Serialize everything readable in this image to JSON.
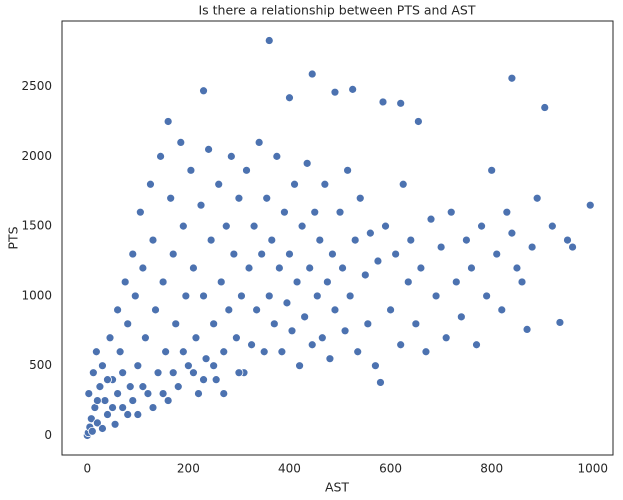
{
  "chart_data": {
    "type": "scatter",
    "title": "Is there a relationship between PTS and AST",
    "x_label": "AST",
    "y_label": "PTS",
    "color": "#4c72b0",
    "xlim": [
      -50,
      1040
    ],
    "ylim": [
      -140,
      2970
    ],
    "xticks": [
      0,
      200,
      400,
      600,
      800,
      1000
    ],
    "yticks": [
      0,
      500,
      1000,
      1500,
      2000,
      2500
    ],
    "x": [
      0,
      2,
      5,
      10,
      8,
      15,
      3,
      20,
      25,
      12,
      30,
      18,
      35,
      40,
      45,
      50,
      55,
      60,
      65,
      70,
      75,
      80,
      85,
      90,
      95,
      100,
      100,
      105,
      110,
      115,
      120,
      125,
      130,
      135,
      140,
      145,
      150,
      155,
      160,
      165,
      170,
      175,
      180,
      185,
      190,
      195,
      200,
      205,
      210,
      215,
      220,
      225,
      230,
      235,
      240,
      245,
      250,
      255,
      260,
      265,
      270,
      275,
      280,
      285,
      290,
      295,
      300,
      305,
      310,
      315,
      320,
      325,
      330,
      335,
      340,
      345,
      350,
      355,
      360,
      365,
      370,
      375,
      380,
      385,
      390,
      395,
      400,
      405,
      410,
      415,
      420,
      425,
      430,
      435,
      440,
      445,
      450,
      455,
      460,
      465,
      470,
      475,
      480,
      485,
      490,
      500,
      505,
      510,
      515,
      520,
      530,
      535,
      540,
      550,
      555,
      560,
      570,
      575,
      580,
      590,
      600,
      610,
      620,
      625,
      635,
      640,
      650,
      655,
      660,
      670,
      680,
      690,
      700,
      710,
      720,
      730,
      740,
      750,
      760,
      770,
      780,
      790,
      800,
      810,
      820,
      830,
      840,
      850,
      860,
      870,
      880,
      890,
      905,
      920,
      935,
      950,
      960,
      995,
      360,
      445,
      840,
      230,
      525,
      400,
      490,
      585,
      620,
      160,
      20,
      40,
      60,
      80,
      30,
      50,
      70,
      90,
      110,
      130,
      150,
      170,
      190,
      210,
      230,
      250,
      270,
      300
    ],
    "values": [
      0,
      20,
      60,
      30,
      120,
      200,
      300,
      90,
      350,
      450,
      500,
      600,
      250,
      150,
      700,
      400,
      80,
      900,
      600,
      200,
      1100,
      800,
      350,
      1300,
      1000,
      150,
      500,
      1600,
      1200,
      700,
      300,
      1800,
      1400,
      900,
      450,
      2000,
      1100,
      600,
      250,
      1700,
      1300,
      800,
      350,
      2100,
      1500,
      1000,
      500,
      1900,
      1200,
      700,
      300,
      1650,
      1000,
      550,
      2050,
      1400,
      800,
      400,
      1800,
      1100,
      600,
      1500,
      900,
      2000,
      1300,
      700,
      1700,
      1000,
      450,
      1900,
      1200,
      650,
      1500,
      900,
      2100,
      1300,
      600,
      1700,
      1000,
      1400,
      800,
      2000,
      1200,
      600,
      1600,
      950,
      1300,
      750,
      1800,
      1100,
      500,
      1500,
      850,
      1950,
      1200,
      650,
      1600,
      1000,
      1400,
      700,
      1800,
      1100,
      550,
      1300,
      900,
      1600,
      1200,
      750,
      1900,
      1000,
      1400,
      600,
      1700,
      1150,
      800,
      1450,
      500,
      1250,
      380,
      1500,
      900,
      1300,
      650,
      1800,
      1100,
      1400,
      800,
      2250,
      1200,
      600,
      1550,
      1000,
      1350,
      700,
      1600,
      1100,
      850,
      1400,
      1200,
      650,
      1500,
      1000,
      1900,
      1300,
      900,
      1600,
      1450,
      1200,
      1100,
      760,
      1350,
      1700,
      2350,
      1500,
      810,
      1400,
      1350,
      1650,
      2830,
      2590,
      2560,
      2470,
      2480,
      2420,
      2460,
      2390,
      2380,
      2250,
      250,
      400,
      300,
      150,
      50,
      200,
      450,
      250,
      350,
      200,
      300,
      450,
      600,
      450,
      400,
      500,
      300,
      450
    ]
  }
}
